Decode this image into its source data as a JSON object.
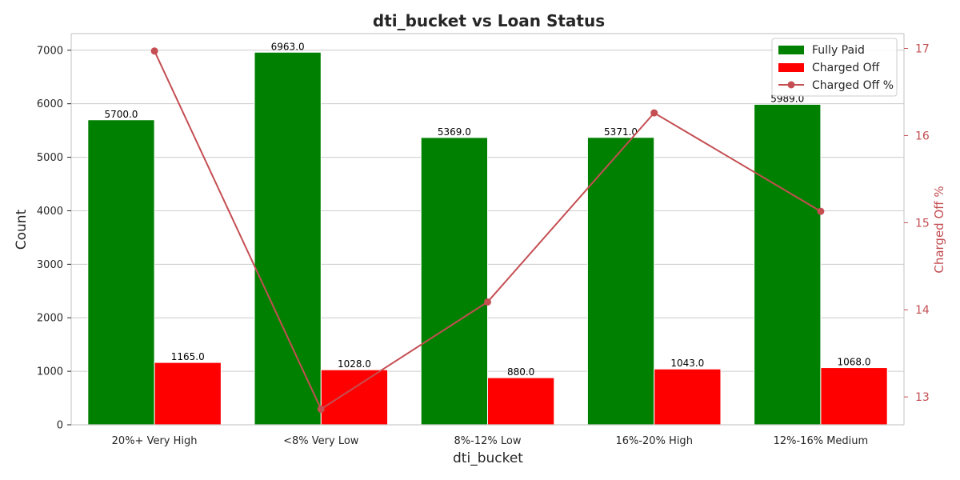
{
  "chart_data": {
    "type": "bar",
    "title": "dti_bucket vs Loan Status",
    "xlabel": "dti_bucket",
    "ylabel": "Count",
    "ylabel_right": "Charged Off %",
    "categories": [
      "20%+ Very High",
      "<8% Very Low",
      "8%-12% Low",
      "16%-20% High",
      "12%-16% Medium"
    ],
    "series": [
      {
        "name": "Fully Paid",
        "type": "bar",
        "color": "#008000",
        "values": [
          5700.0,
          6963.0,
          5369.0,
          5371.0,
          5989.0
        ],
        "value_labels": [
          "5700.0",
          "6963.0",
          "5369.0",
          "5371.0",
          "5989.0"
        ]
      },
      {
        "name": "Charged Off",
        "type": "bar",
        "color": "#ff0000",
        "values": [
          1165.0,
          1028.0,
          880.0,
          1043.0,
          1068.0
        ],
        "value_labels": [
          "1165.0",
          "1028.0",
          "880.0",
          "1043.0",
          "1068.0"
        ]
      },
      {
        "name": "Charged Off %",
        "type": "line",
        "axis": "right",
        "color": "#c44e52",
        "values": [
          16.97,
          12.86,
          14.09,
          16.26,
          15.13
        ]
      }
    ],
    "ylim": [
      0,
      7311
    ],
    "y2lim": [
      12.68,
      17.17
    ],
    "yticks": [
      0,
      1000,
      2000,
      3000,
      4000,
      5000,
      6000,
      7000
    ],
    "ytick_labels": [
      "0",
      "1000",
      "2000",
      "3000",
      "4000",
      "5000",
      "6000",
      "7000"
    ],
    "y2ticks": [
      13,
      14,
      15,
      16,
      17
    ],
    "y2tick_labels": [
      "13",
      "14",
      "15",
      "16",
      "17"
    ],
    "grid": true,
    "legend_position": "top-right"
  }
}
